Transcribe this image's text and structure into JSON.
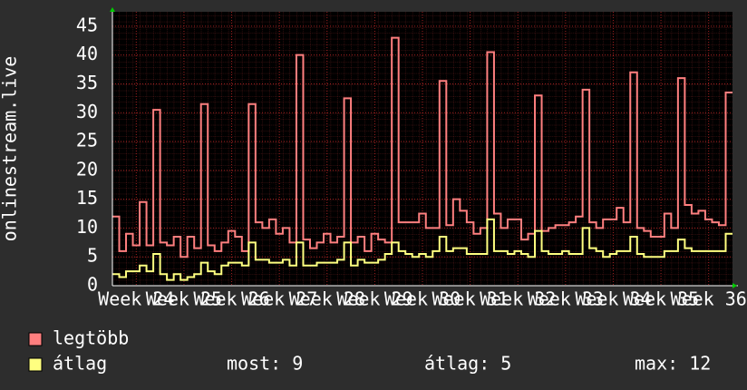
{
  "chart_data": {
    "type": "line",
    "y_label": "onlinestream.live",
    "categories": [
      null,
      null,
      null,
      "Week 24",
      null,
      null,
      null,
      null,
      null,
      null,
      "Week 25",
      null,
      null,
      null,
      null,
      null,
      null,
      "Week 26",
      null,
      null,
      null,
      null,
      null,
      null,
      "Week 27",
      null,
      null,
      null,
      null,
      null,
      null,
      "Week 28",
      null,
      null,
      null,
      null,
      null,
      null,
      "Week 29",
      null,
      null,
      null,
      null,
      null,
      null,
      "Week 30",
      null,
      null,
      null,
      null,
      null,
      null,
      "Week 31",
      null,
      null,
      null,
      null,
      null,
      null,
      "Week 32",
      null,
      null,
      null,
      null,
      null,
      null,
      "Week 33",
      null,
      null,
      null,
      null,
      null,
      null,
      "Week 34",
      null,
      null,
      null,
      null,
      null,
      null,
      "Week 35",
      null,
      null,
      null,
      null,
      null,
      null,
      "Week 36",
      null,
      null,
      null
    ],
    "series": [
      {
        "name": "legtöbb",
        "color": "#ff7f7f",
        "values": [
          12,
          6,
          9,
          7,
          14.5,
          7,
          30.5,
          7.5,
          7,
          8.5,
          5,
          8.5,
          6.5,
          31.5,
          7,
          6,
          7.5,
          9.5,
          8.5,
          6,
          31.5,
          11,
          10,
          11.5,
          9,
          10,
          7.5,
          40,
          8,
          6.5,
          7.5,
          9,
          7.5,
          8.5,
          32.5,
          7.5,
          8.5,
          6,
          9,
          8,
          7.5,
          43,
          11,
          11,
          11,
          12.5,
          10,
          10,
          35.5,
          10.5,
          15,
          13,
          11,
          9,
          10,
          40.5,
          12.5,
          10,
          11.5,
          11.5,
          8,
          9,
          33,
          9.5,
          10,
          10.5,
          10.5,
          11,
          12,
          34,
          11,
          10,
          11.5,
          11.5,
          13.5,
          11,
          37,
          10,
          9.5,
          8.5,
          8.5,
          12.5,
          10,
          36,
          14,
          12.5,
          13,
          11.5,
          11,
          10.5,
          33.5
        ]
      },
      {
        "name": "átlag",
        "color": "#ffff80",
        "values": [
          2,
          1.5,
          2.5,
          2.5,
          3.5,
          2.5,
          5.5,
          2,
          1,
          2,
          1,
          1.5,
          2,
          4,
          2.5,
          2,
          3.5,
          4,
          4,
          3.5,
          7.5,
          4.5,
          4.5,
          4,
          4,
          4.5,
          3.5,
          7.5,
          3.5,
          3.5,
          4,
          4,
          4,
          4.5,
          7.5,
          3.5,
          4.5,
          4,
          4,
          4.5,
          5.5,
          7.5,
          6,
          5.5,
          5,
          5.5,
          5,
          6,
          8.5,
          6,
          6.5,
          6.5,
          5.5,
          5.5,
          5.5,
          11.5,
          6,
          6,
          5.5,
          6,
          5.5,
          5,
          9.5,
          6,
          5.5,
          5.5,
          6,
          5.5,
          5.5,
          10,
          6.5,
          6,
          5,
          5.5,
          6,
          6,
          8.5,
          5.5,
          5,
          5,
          5,
          6,
          6,
          8,
          6.5,
          6,
          6,
          6,
          6,
          6,
          9
        ]
      }
    ],
    "ylim": [
      0,
      47.5
    ],
    "yticks": [
      0,
      5,
      10,
      15,
      20,
      25,
      30,
      35,
      40,
      45
    ],
    "grid": true,
    "stats": [
      "most: 9",
      "átlag: 5",
      "max: 12"
    ]
  }
}
